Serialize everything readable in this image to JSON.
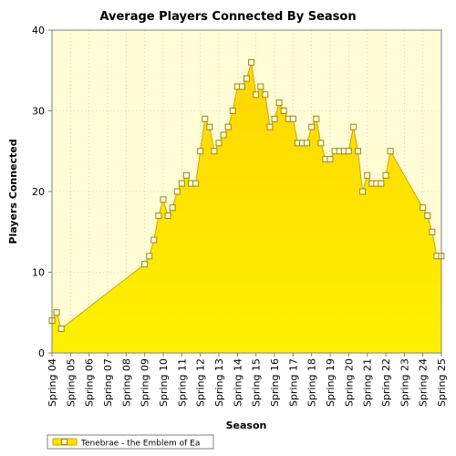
{
  "chart_data": {
    "type": "area",
    "title": "Average Players Connected By Season",
    "xlabel": "Season",
    "ylabel": "Players Connected",
    "ylim": [
      0,
      40
    ],
    "yticks": [
      0,
      10,
      20,
      30,
      40
    ],
    "xlim": [
      2004,
      2025
    ],
    "xticks": [
      "Spring 04",
      "Spring 05",
      "Spring 06",
      "Spring 07",
      "Spring 08",
      "Spring 09",
      "Spring 10",
      "Spring 11",
      "Spring 12",
      "Spring 13",
      "Spring 14",
      "Spring 15",
      "Spring 16",
      "Spring 17",
      "Spring 18",
      "Spring 19",
      "Spring 20",
      "Spring 21",
      "Spring 22",
      "Spring 23",
      "Spring 24",
      "Spring 25"
    ],
    "grid": true,
    "legend": "bottom-left",
    "colors": {
      "fill": "#ffe000",
      "line": "#c8a800",
      "marker": "#fffce0",
      "plot_bg": "#fffcd6"
    },
    "series": [
      {
        "name": "Tenebrae - the Emblem of Ea",
        "points": [
          [
            2004.0,
            4
          ],
          [
            2004.25,
            5
          ],
          [
            2004.5,
            3
          ],
          [
            2009.0,
            11
          ],
          [
            2009.25,
            12
          ],
          [
            2009.5,
            14
          ],
          [
            2009.75,
            17
          ],
          [
            2010.0,
            19
          ],
          [
            2010.25,
            17
          ],
          [
            2010.5,
            18
          ],
          [
            2010.75,
            20
          ],
          [
            2011.0,
            21
          ],
          [
            2011.25,
            22
          ],
          [
            2011.5,
            21
          ],
          [
            2011.75,
            21
          ],
          [
            2012.0,
            25
          ],
          [
            2012.25,
            29
          ],
          [
            2012.5,
            28
          ],
          [
            2012.75,
            25
          ],
          [
            2013.0,
            26
          ],
          [
            2013.25,
            27
          ],
          [
            2013.5,
            28
          ],
          [
            2013.75,
            30
          ],
          [
            2014.0,
            33
          ],
          [
            2014.25,
            33
          ],
          [
            2014.5,
            34
          ],
          [
            2014.75,
            36
          ],
          [
            2015.0,
            32
          ],
          [
            2015.25,
            33
          ],
          [
            2015.5,
            32
          ],
          [
            2015.75,
            28
          ],
          [
            2016.0,
            29
          ],
          [
            2016.25,
            31
          ],
          [
            2016.5,
            30
          ],
          [
            2016.75,
            29
          ],
          [
            2017.0,
            29
          ],
          [
            2017.25,
            26
          ],
          [
            2017.5,
            26
          ],
          [
            2017.75,
            26
          ],
          [
            2018.0,
            28
          ],
          [
            2018.25,
            29
          ],
          [
            2018.5,
            26
          ],
          [
            2018.75,
            24
          ],
          [
            2019.0,
            24
          ],
          [
            2019.25,
            25
          ],
          [
            2019.5,
            25
          ],
          [
            2019.75,
            25
          ],
          [
            2020.0,
            25
          ],
          [
            2020.25,
            28
          ],
          [
            2020.5,
            25
          ],
          [
            2020.75,
            20
          ],
          [
            2021.0,
            22
          ],
          [
            2021.25,
            21
          ],
          [
            2021.5,
            21
          ],
          [
            2021.75,
            21
          ],
          [
            2022.0,
            22
          ],
          [
            2022.25,
            25
          ],
          [
            2024.0,
            18
          ],
          [
            2024.25,
            17
          ],
          [
            2024.5,
            15
          ],
          [
            2024.75,
            12
          ],
          [
            2025.0,
            12
          ]
        ]
      }
    ]
  }
}
